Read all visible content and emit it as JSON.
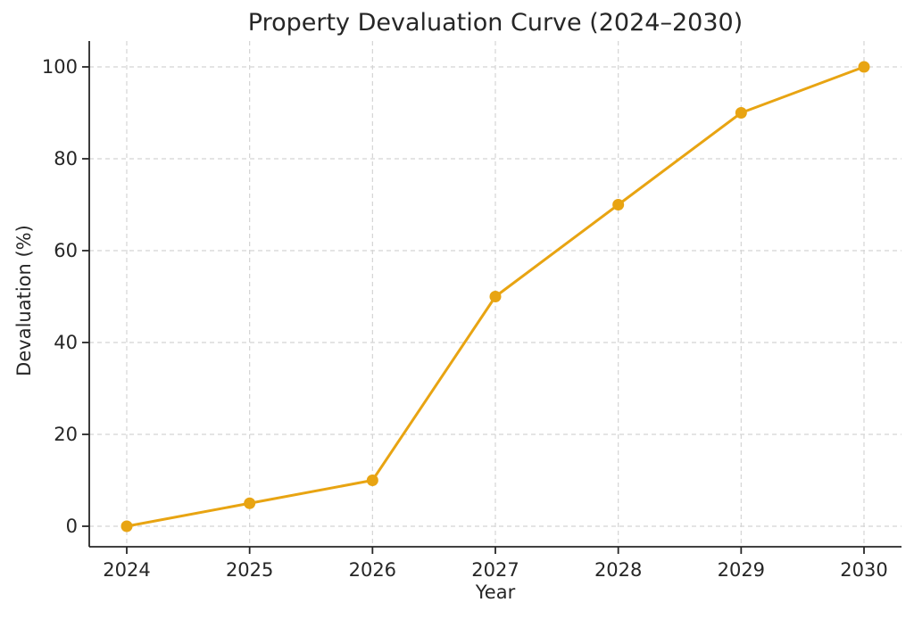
{
  "chart_data": {
    "type": "line",
    "title": "Property Devaluation Curve (2024–2030)",
    "xlabel": "Year",
    "ylabel": "Devaluation (%)",
    "x": [
      2024,
      2025,
      2026,
      2027,
      2028,
      2029,
      2030
    ],
    "x_tick_labels": [
      "2024",
      "2025",
      "2026",
      "2027",
      "2028",
      "2029",
      "2030"
    ],
    "series": [
      {
        "name": "Devaluation",
        "values": [
          0,
          5,
          10,
          50,
          70,
          90,
          100
        ]
      }
    ],
    "ylim": [
      0,
      100
    ],
    "y_ticks": [
      0,
      20,
      40,
      60,
      80,
      100
    ],
    "y_tick_labels": [
      "0",
      "20",
      "40",
      "60",
      "80",
      "100"
    ],
    "grid": true,
    "grid_style": "dashed",
    "legend": "none",
    "line_color": "#E8A412",
    "marker": "circle",
    "grid_color": "#d4d4d4",
    "axis_color": "#262626",
    "text_color": "#262626",
    "background_color": "#ffffff"
  }
}
